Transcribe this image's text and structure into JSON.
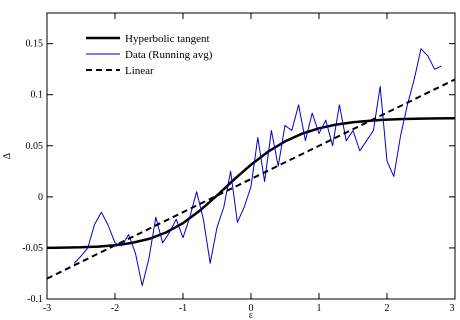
{
  "chart_data": {
    "type": "line",
    "title": "",
    "xlabel": "ε",
    "ylabel": "Δ",
    "xlim": [
      -3,
      3
    ],
    "ylim": [
      -0.1,
      0.18
    ],
    "x_ticks": [
      -3,
      -2,
      -1,
      0,
      1,
      2,
      3
    ],
    "x_tick_labels": [
      "-3",
      "-2",
      "-1",
      "0",
      "1",
      "2",
      "3"
    ],
    "y_ticks": [
      -0.1,
      -0.05,
      0,
      0.05,
      0.1,
      0.15
    ],
    "y_tick_labels": [
      "-0.1",
      "-0.05",
      "0",
      "0.05",
      "0.1",
      "0.15"
    ],
    "grid": false,
    "legend_position": "top-left",
    "series": [
      {
        "name": "Hyperbolic tangent",
        "style": "solid-thick",
        "color": "#000000",
        "x": [
          -3.0,
          -2.75,
          -2.5,
          -2.25,
          -2.0,
          -1.75,
          -1.5,
          -1.25,
          -1.0,
          -0.75,
          -0.5,
          -0.25,
          0.0,
          0.25,
          0.5,
          0.75,
          1.0,
          1.25,
          1.5,
          1.75,
          2.0,
          2.25,
          2.5,
          2.75,
          3.0
        ],
        "values": [
          -0.05,
          -0.0497,
          -0.0494,
          -0.0487,
          -0.0474,
          -0.0451,
          -0.0412,
          -0.0349,
          -0.0257,
          -0.0134,
          0.0013,
          0.0169,
          0.0315,
          0.0442,
          0.0543,
          0.0618,
          0.0671,
          0.0707,
          0.0731,
          0.0746,
          0.0756,
          0.0762,
          0.0766,
          0.0768,
          0.0769
        ]
      },
      {
        "name": "Data (Running avg)",
        "style": "solid-thin",
        "color": "#0000cc",
        "x": [
          -2.6,
          -2.5,
          -2.4,
          -2.3,
          -2.2,
          -2.1,
          -2.0,
          -1.9,
          -1.8,
          -1.7,
          -1.6,
          -1.5,
          -1.4,
          -1.3,
          -1.2,
          -1.1,
          -1.0,
          -0.9,
          -0.8,
          -0.7,
          -0.6,
          -0.5,
          -0.4,
          -0.3,
          -0.2,
          -0.1,
          0.0,
          0.1,
          0.2,
          0.3,
          0.4,
          0.5,
          0.6,
          0.7,
          0.8,
          0.9,
          1.0,
          1.1,
          1.2,
          1.3,
          1.4,
          1.5,
          1.6,
          1.7,
          1.8,
          1.9,
          2.0,
          2.1,
          2.2,
          2.3,
          2.4,
          2.5,
          2.6,
          2.7,
          2.8
        ],
        "values": [
          -0.065,
          -0.058,
          -0.05,
          -0.027,
          -0.015,
          -0.028,
          -0.045,
          -0.048,
          -0.037,
          -0.055,
          -0.087,
          -0.06,
          -0.02,
          -0.045,
          -0.035,
          -0.022,
          -0.04,
          -0.02,
          0.005,
          -0.022,
          -0.065,
          -0.03,
          -0.01,
          0.025,
          -0.025,
          -0.01,
          0.01,
          0.058,
          0.015,
          0.065,
          0.03,
          0.07,
          0.065,
          0.09,
          0.055,
          0.082,
          0.062,
          0.075,
          0.05,
          0.09,
          0.055,
          0.065,
          0.045,
          0.055,
          0.065,
          0.108,
          0.035,
          0.02,
          0.06,
          0.09,
          0.115,
          0.145,
          0.138,
          0.125,
          0.128
        ]
      },
      {
        "name": "Linear",
        "style": "dashed",
        "color": "#000000",
        "x": [
          -3.0,
          3.0
        ],
        "values": [
          -0.08,
          0.115
        ]
      }
    ]
  }
}
